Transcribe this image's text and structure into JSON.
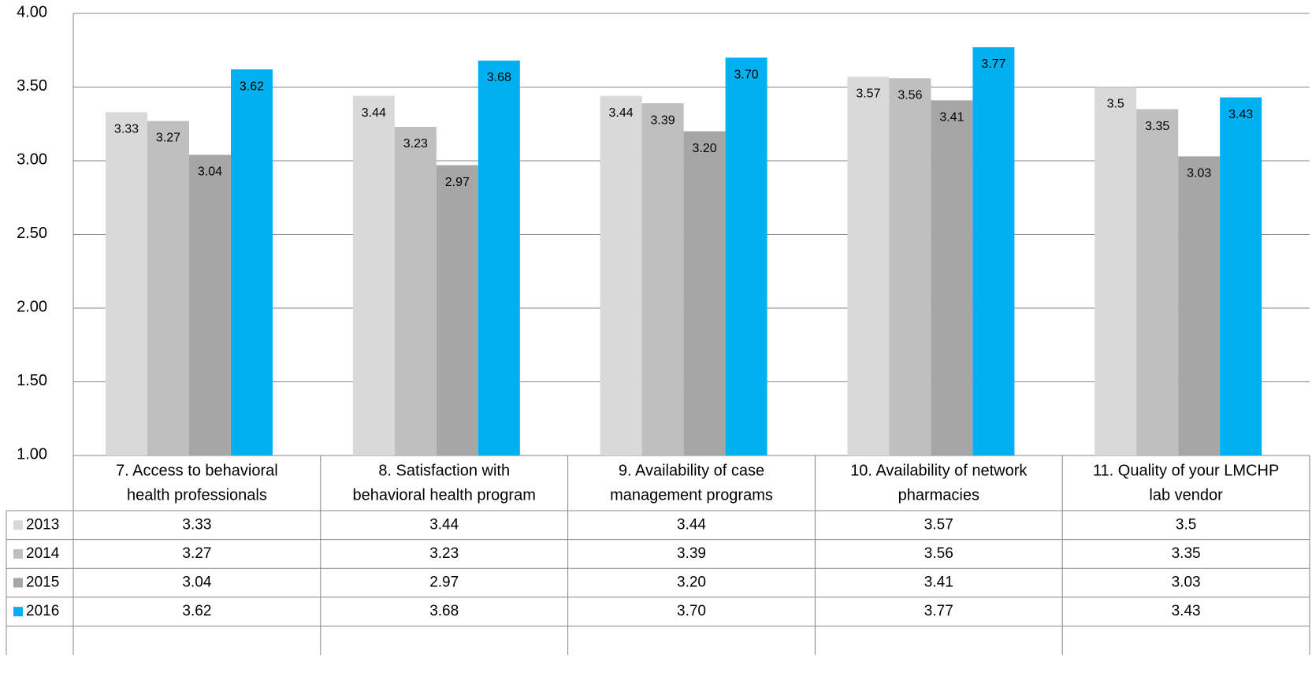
{
  "chart_data": {
    "type": "bar",
    "categories": [
      "7. Access to behavioral health professionals",
      "8. Satisfaction with behavioral health program",
      "9. Availability of case management programs",
      "10. Availability of network pharmacies",
      "11. Quality of your LMCHP lab vendor"
    ],
    "category_lines": [
      [
        "7. Access to behavioral",
        "health professionals"
      ],
      [
        "8. Satisfaction with",
        "behavioral health program"
      ],
      [
        "9. Availability of case",
        "management programs"
      ],
      [
        "10. Availability of network",
        "pharmacies"
      ],
      [
        "11. Quality of your LMCHP",
        "lab vendor"
      ]
    ],
    "series": [
      {
        "name": "2013",
        "values": [
          3.33,
          3.44,
          3.44,
          3.57,
          3.5
        ],
        "labels": [
          "3.33",
          "3.44",
          "3.44",
          "3.57",
          "3.5"
        ],
        "color": "#d9d9d9"
      },
      {
        "name": "2014",
        "values": [
          3.27,
          3.23,
          3.39,
          3.56,
          3.35
        ],
        "labels": [
          "3.27",
          "3.23",
          "3.39",
          "3.56",
          "3.35"
        ],
        "color": "#bfbfbf"
      },
      {
        "name": "2015",
        "values": [
          3.04,
          2.97,
          3.2,
          3.41,
          3.03
        ],
        "labels": [
          "3.04",
          "2.97",
          "3.20",
          "3.41",
          "3.03"
        ],
        "color": "#a6a6a6"
      },
      {
        "name": "2016",
        "values": [
          3.62,
          3.68,
          3.7,
          3.77,
          3.43
        ],
        "labels": [
          "3.62",
          "3.68",
          "3.70",
          "3.77",
          "3.43"
        ],
        "color": "#00b0f0"
      }
    ],
    "yticks": [
      "1.00",
      "1.50",
      "2.00",
      "2.50",
      "3.00",
      "3.50",
      "4.00"
    ],
    "ylim": [
      1.0,
      4.0
    ],
    "grid": true,
    "legend": "data-table-left",
    "title": "",
    "xlabel": "",
    "ylabel": ""
  }
}
